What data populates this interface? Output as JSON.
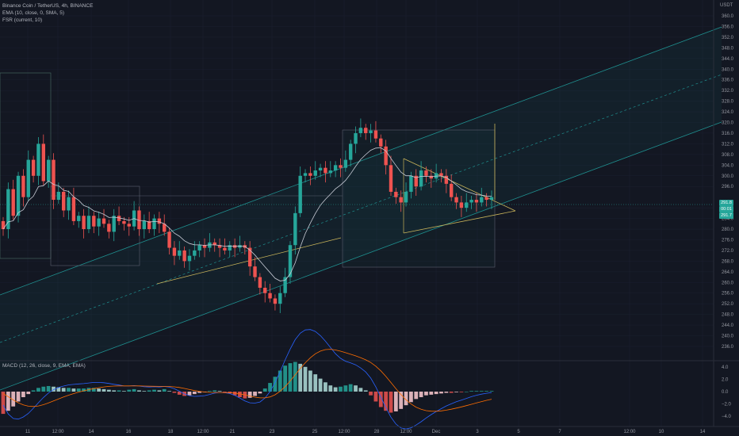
{
  "header": {
    "symbol_line": "Binance Coin / TetherUS, 4h, BINANCE",
    "ema_line": "EMA (10, close, 0, SMA, 5)",
    "fsr_line": "FSR (current, 10)",
    "currency": "USDT"
  },
  "macd": {
    "label": "MACD (12, 26, close, 9, EMA, EMA)"
  },
  "price_axis": {
    "ticks": [
      "360.0",
      "356.0",
      "352.0",
      "348.0",
      "344.0",
      "340.0",
      "336.0",
      "332.0",
      "328.0",
      "324.0",
      "320.0",
      "316.0",
      "312.0",
      "308.0",
      "304.0",
      "300.0",
      "296.0",
      "288.0",
      "284.0",
      "280.0",
      "276.0",
      "272.0",
      "268.0",
      "264.0",
      "260.0",
      "256.0",
      "252.0",
      "248.0",
      "244.0",
      "240.0",
      "236.0"
    ],
    "tags": [
      {
        "text": "291.8",
        "color": "#26a69a"
      },
      {
        "text": "00:01",
        "color": "#26a69a"
      },
      {
        "text": "291.7",
        "color": "#26a69a"
      }
    ]
  },
  "macd_axis": {
    "ticks": [
      "4.0",
      "2.0",
      "0.0",
      "−2.0",
      "−4.0"
    ]
  },
  "time_axis": {
    "ticks": [
      "11",
      "12:00",
      "14",
      "16",
      "18",
      "12:00",
      "21",
      "23",
      "25",
      "12:00",
      "28",
      "12:00",
      "Dec",
      "3",
      "5",
      "7",
      "12:00",
      "10",
      "14"
    ]
  },
  "colors": {
    "up": "#26a69a",
    "down": "#ef5350",
    "background": "#131722",
    "triangle": "#c9b45a",
    "channel": "#1f8f8f"
  },
  "chart_data": {
    "type": "candlestick",
    "symbol": "BNB/USDT",
    "interval": "4h",
    "ylim": [
      236,
      360
    ],
    "closes": [
      280,
      295,
      285,
      300,
      292,
      306,
      300,
      312,
      298,
      306,
      291,
      294,
      287,
      292,
      283,
      285,
      280,
      285,
      281,
      284,
      282,
      279,
      285,
      283,
      282,
      281,
      287,
      280,
      283,
      280,
      284,
      282,
      279,
      273,
      270,
      272,
      268,
      270,
      272,
      274,
      273,
      275,
      274,
      273,
      272,
      274,
      273,
      274,
      273,
      266,
      262,
      258,
      256,
      254,
      252,
      256,
      262,
      274,
      286,
      300,
      301,
      300,
      302,
      303,
      301,
      302,
      304,
      303,
      306,
      312,
      316,
      318,
      316,
      317,
      314,
      311,
      304,
      294,
      292,
      290,
      294,
      300,
      296,
      302,
      300,
      299,
      301,
      300,
      297,
      292,
      290,
      288,
      290,
      291,
      290,
      292,
      291,
      292
    ],
    "macd_histogram": [
      -3.6,
      -3.1,
      -2.4,
      -1.6,
      -0.9,
      -0.4,
      0.2,
      0.6,
      0.8,
      0.9,
      0.8,
      0.7,
      0.6,
      0.6,
      0.5,
      0.5,
      0.5,
      0.6,
      0.6,
      0.5,
      0.4,
      0.3,
      0.2,
      0.2,
      0.1,
      0.3,
      0.4,
      0.2,
      0.1,
      0.2,
      0.3,
      0.2,
      0.4,
      0.1,
      -0.2,
      -0.5,
      -0.7,
      -0.6,
      -0.4,
      -0.2,
      -0.1,
      0.1,
      0.2,
      0.1,
      -0.1,
      -0.3,
      -0.6,
      -0.9,
      -1.1,
      -1.0,
      -0.7,
      -0.3,
      0.5,
      1.4,
      2.4,
      3.4,
      4.2,
      4.6,
      4.8,
      4.5,
      4.0,
      3.4,
      2.8,
      2.1,
      1.5,
      1.0,
      0.7,
      0.8,
      1.0,
      1.2,
      1.0,
      0.6,
      0.2,
      -0.6,
      -1.6,
      -2.5,
      -3.1,
      -3.4,
      -3.2,
      -2.8,
      -2.2,
      -1.7,
      -1.2,
      -0.9,
      -0.6,
      -0.5,
      -0.4,
      -0.3,
      -0.2,
      -0.2,
      -0.1,
      -0.1,
      0.0,
      0.1,
      0.1,
      0.1,
      0.1,
      0.1
    ]
  }
}
